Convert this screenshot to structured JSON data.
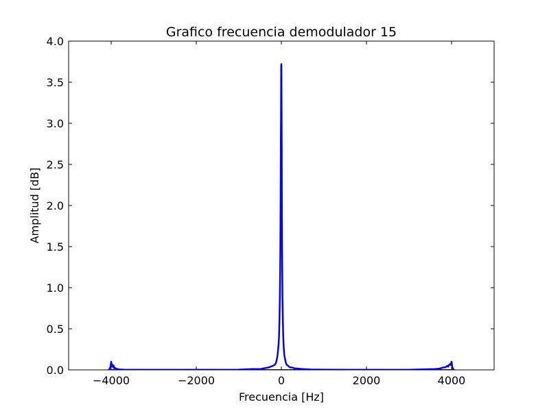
{
  "chart_data": {
    "type": "line",
    "title": "Grafico frecuencia demodulador 15",
    "xlabel": "Frecuencia [Hz]",
    "ylabel": "Amplitud [dB]",
    "xlim": [
      -5000,
      5000
    ],
    "ylim": [
      0.0,
      4.0
    ],
    "xticks": [
      -4000,
      -2000,
      0,
      2000,
      4000
    ],
    "xtick_labels": [
      "−4000",
      "−2000",
      "0",
      "2000",
      "4000"
    ],
    "yticks": [
      0.0,
      0.5,
      1.0,
      1.5,
      2.0,
      2.5,
      3.0,
      3.5,
      4.0
    ],
    "ytick_labels": [
      "0.0",
      "0.5",
      "1.0",
      "1.5",
      "2.0",
      "2.5",
      "3.0",
      "3.5",
      "4.0"
    ],
    "grid": false,
    "line_color": "#0000ff",
    "series": [
      {
        "x": [
          -4060,
          -4040,
          -4020,
          -4000,
          -3990,
          -3980,
          -3970,
          -3960,
          -3950,
          -3940,
          -3930,
          -3920,
          -3900,
          -3880,
          -3860,
          -3840,
          -3800,
          -3700,
          -3000,
          -2000,
          -1000,
          -700,
          -500,
          -300,
          -250,
          -200,
          -160,
          -130,
          -110,
          -90,
          -70,
          -55,
          -45,
          -35,
          -25,
          -18,
          -12,
          -8,
          -4,
          0,
          4,
          8,
          12,
          18,
          25,
          35,
          45,
          55,
          70,
          90,
          110,
          130,
          160,
          200,
          250,
          300,
          500,
          700,
          1000,
          2000,
          3000,
          3600,
          3700,
          3750,
          3800,
          3850,
          3880,
          3900,
          3920,
          3940,
          3960,
          3980,
          4000,
          4020,
          4040,
          4060
        ],
        "y": [
          0.0,
          0.01,
          0.03,
          0.1,
          0.05,
          0.07,
          0.04,
          0.06,
          0.03,
          0.05,
          0.02,
          0.03,
          0.02,
          0.015,
          0.01,
          0.01,
          0.005,
          0.003,
          0.002,
          0.002,
          0.003,
          0.01,
          0.01,
          0.03,
          0.04,
          0.05,
          0.06,
          0.08,
          0.12,
          0.18,
          0.28,
          0.4,
          0.6,
          0.9,
          1.4,
          2.0,
          2.8,
          3.1,
          3.7,
          3.72,
          3.3,
          2.8,
          2.0,
          1.4,
          0.9,
          0.6,
          0.4,
          0.28,
          0.18,
          0.12,
          0.08,
          0.06,
          0.05,
          0.03,
          0.03,
          0.02,
          0.01,
          0.005,
          0.003,
          0.002,
          0.002,
          0.01,
          0.015,
          0.02,
          0.03,
          0.03,
          0.04,
          0.05,
          0.04,
          0.06,
          0.07,
          0.06,
          0.1,
          0.03,
          0.01,
          0.0
        ]
      }
    ]
  }
}
